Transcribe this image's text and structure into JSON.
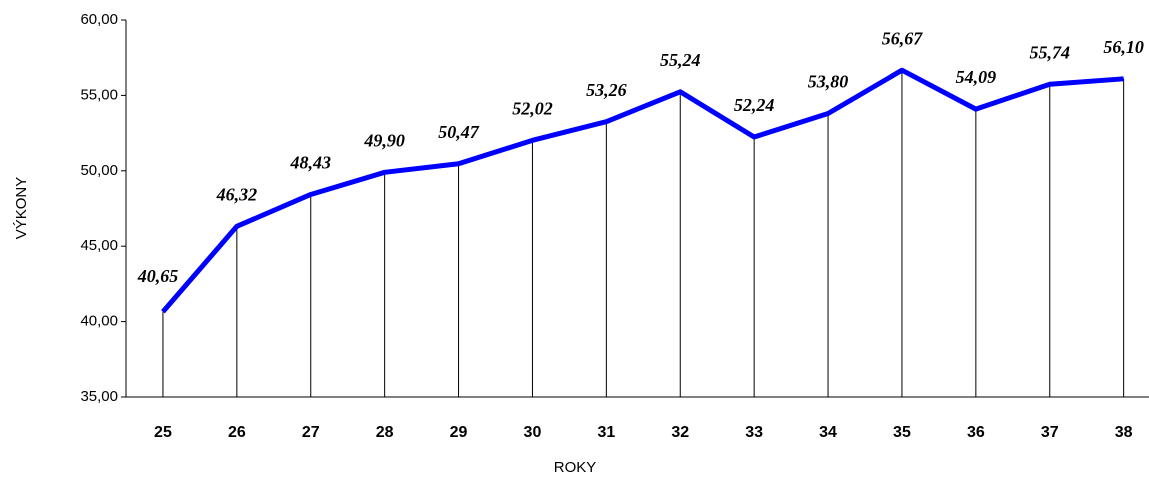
{
  "chart_data": {
    "type": "line",
    "x_label": "ROKY",
    "y_label": "VÝKONY",
    "categories": [
      "25",
      "26",
      "27",
      "28",
      "29",
      "30",
      "31",
      "32",
      "33",
      "34",
      "35",
      "36",
      "37",
      "38"
    ],
    "series": [
      {
        "name": "VÝKONY",
        "color": "#0000ff",
        "values": [
          40.65,
          46.32,
          48.43,
          49.9,
          50.47,
          52.02,
          53.26,
          55.24,
          52.24,
          53.8,
          56.67,
          54.09,
          55.74,
          56.1
        ],
        "value_labels": [
          "40,65",
          "46,32",
          "48,43",
          "49,90",
          "50,47",
          "52,02",
          "53,26",
          "55,24",
          "52,24",
          "53,80",
          "56,67",
          "54,09",
          "55,74",
          "56,10"
        ]
      }
    ],
    "ylim": [
      35,
      60
    ],
    "yticks": [
      {
        "value": 35,
        "label": "35,00"
      },
      {
        "value": 40,
        "label": "40,00"
      },
      {
        "value": 45,
        "label": "45,00"
      },
      {
        "value": 50,
        "label": "50,00"
      },
      {
        "value": 55,
        "label": "55,00"
      },
      {
        "value": 60,
        "label": "60,00"
      }
    ],
    "drop_lines": true
  }
}
